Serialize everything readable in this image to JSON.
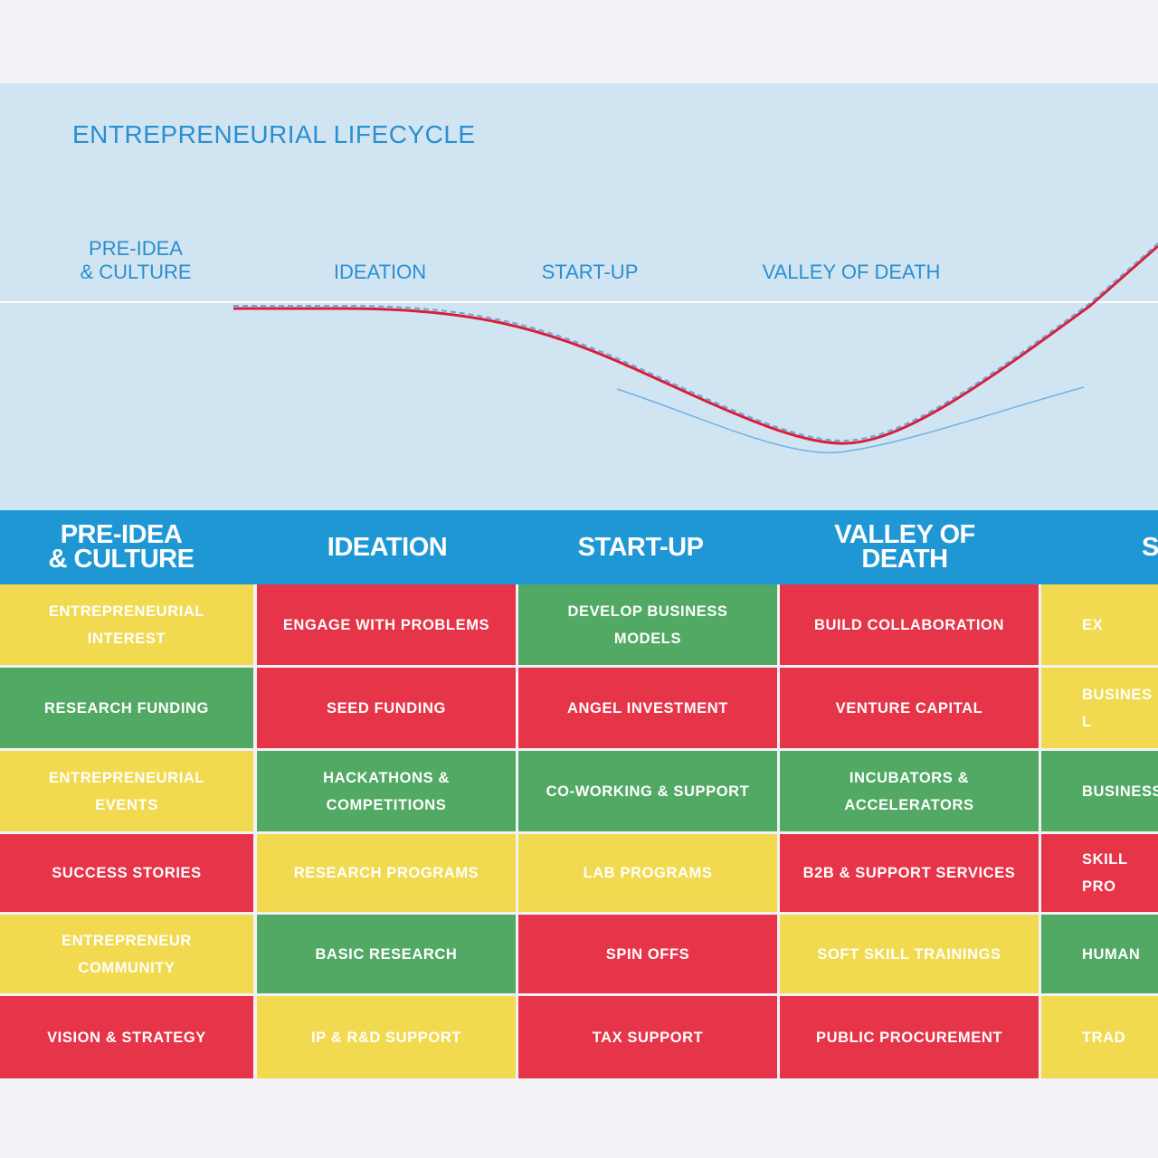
{
  "lifecycle": {
    "title": "ENTREPRENEURIAL LIFECYCLE",
    "stages": [
      "PRE-IDEA\n& CULTURE",
      "IDEATION",
      "START-UP",
      "VALLEY OF DEATH"
    ]
  },
  "colors": {
    "panel": "#d1e4f2",
    "accent_blue": "#2a8fd0",
    "header_band": "#1f97d4",
    "yellow": "#f1da50",
    "red": "#e63448",
    "green": "#52a964",
    "curve_red": "#d6203a"
  },
  "columns": [
    "PRE-IDEA\n& CULTURE",
    "IDEATION",
    "START-UP",
    "VALLEY OF\nDEATH",
    "S"
  ],
  "rows": [
    [
      {
        "text": "ENTREPRENEURIAL\nINTEREST",
        "color": "yellow"
      },
      {
        "text": "ENGAGE WITH PROBLEMS",
        "color": "red"
      },
      {
        "text": "DEVELOP BUSINESS\nMODELS",
        "color": "green"
      },
      {
        "text": "BUILD COLLABORATION",
        "color": "red"
      },
      {
        "text": "EX",
        "color": "yellow"
      }
    ],
    [
      {
        "text": "RESEARCH FUNDING",
        "color": "green"
      },
      {
        "text": "SEED FUNDING",
        "color": "red"
      },
      {
        "text": "ANGEL INVESTMENT",
        "color": "red"
      },
      {
        "text": "VENTURE CAPITAL",
        "color": "red"
      },
      {
        "text": "BUSINES\nL",
        "color": "yellow"
      }
    ],
    [
      {
        "text": "ENTREPRENEURIAL\nEVENTS",
        "color": "yellow"
      },
      {
        "text": "HACKATHONS &\nCOMPETITIONS",
        "color": "green"
      },
      {
        "text": "CO-WORKING & SUPPORT",
        "color": "green"
      },
      {
        "text": "INCUBATORS &\nACCELERATORS",
        "color": "green"
      },
      {
        "text": "BUSINESS",
        "color": "green"
      }
    ],
    [
      {
        "text": "SUCCESS STORIES",
        "color": "red"
      },
      {
        "text": "RESEARCH PROGRAMS",
        "color": "yellow"
      },
      {
        "text": "LAB PROGRAMS",
        "color": "yellow"
      },
      {
        "text": "B2B & SUPPORT SERVICES",
        "color": "red"
      },
      {
        "text": "SKILL\nPRO",
        "color": "red"
      }
    ],
    [
      {
        "text": "ENTREPRENEUR\nCOMMUNITY",
        "color": "yellow"
      },
      {
        "text": "BASIC RESEARCH",
        "color": "green"
      },
      {
        "text": "SPIN OFFS",
        "color": "red"
      },
      {
        "text": "SOFT SKILL TRAININGS",
        "color": "yellow"
      },
      {
        "text": "HUMAN",
        "color": "green"
      }
    ],
    [
      {
        "text": "VISION & STRATEGY",
        "color": "red"
      },
      {
        "text": "IP & R&D SUPPORT",
        "color": "yellow"
      },
      {
        "text": "TAX SUPPORT",
        "color": "red"
      },
      {
        "text": "PUBLIC PROCUREMENT",
        "color": "red"
      },
      {
        "text": "TRAD",
        "color": "yellow"
      }
    ]
  ]
}
